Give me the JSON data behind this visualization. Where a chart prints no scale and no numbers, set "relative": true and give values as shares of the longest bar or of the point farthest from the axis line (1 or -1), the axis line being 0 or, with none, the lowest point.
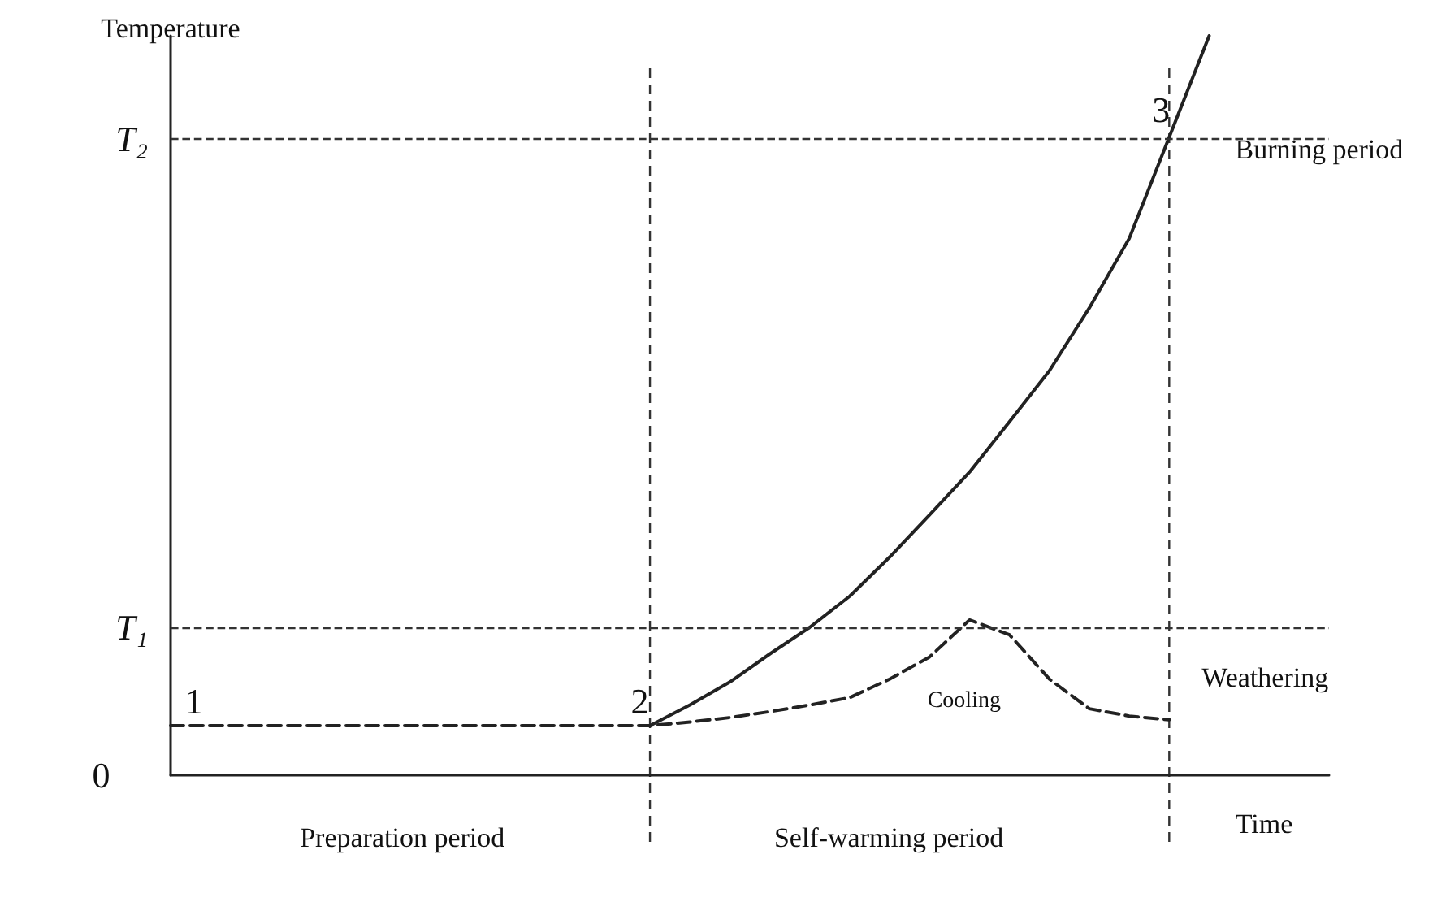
{
  "chart_data": {
    "type": "line",
    "relative": true,
    "ylabel": "Temperature",
    "xlabel": "Time",
    "grid": false,
    "legend": false,
    "marker": "none",
    "categories": [
      null,
      null,
      null,
      null,
      null,
      null,
      null,
      null,
      null,
      null,
      null,
      null,
      null,
      null,
      null,
      null,
      null,
      null,
      null,
      null,
      null,
      null,
      null,
      null,
      null,
      null,
      null,
      null,
      null,
      null
    ],
    "series": [
      {
        "name": "Burning period",
        "color": "#222222",
        "line_style": "solid",
        "values": [
          null,
          null,
          null,
          null,
          null,
          null,
          null,
          null,
          null,
          null,
          null,
          null,
          0.067,
          0.095,
          0.126,
          0.164,
          0.2,
          0.242,
          0.295,
          0.352,
          0.41,
          0.478,
          0.547,
          0.632,
          0.726,
          0.863,
          1,
          null,
          null,
          null
        ]
      },
      {
        "name": "Weathering",
        "color": "#222222",
        "line_style": "dashed",
        "values": [
          0.067,
          0.067,
          0.067,
          0.067,
          0.067,
          0.067,
          0.067,
          0.067,
          0.067,
          0.067,
          0.067,
          0.067,
          0.067,
          0.072,
          0.078,
          0.086,
          0.095,
          0.105,
          0.13,
          0.16,
          0.21,
          0.19,
          0.13,
          0.09,
          0.08,
          0.075,
          null,
          null,
          null,
          null
        ]
      }
    ],
    "ref_lines": [
      {
        "axis": "y",
        "value": 0.2,
        "label": "T₁",
        "line_style": "dashed"
      },
      {
        "axis": "y",
        "value": 0.863,
        "label": "T₂",
        "line_style": "dashed"
      }
    ],
    "annotations": [
      "0",
      "1",
      "2",
      "3",
      "Cooling",
      "Preparation period",
      "Self-warming period"
    ]
  }
}
